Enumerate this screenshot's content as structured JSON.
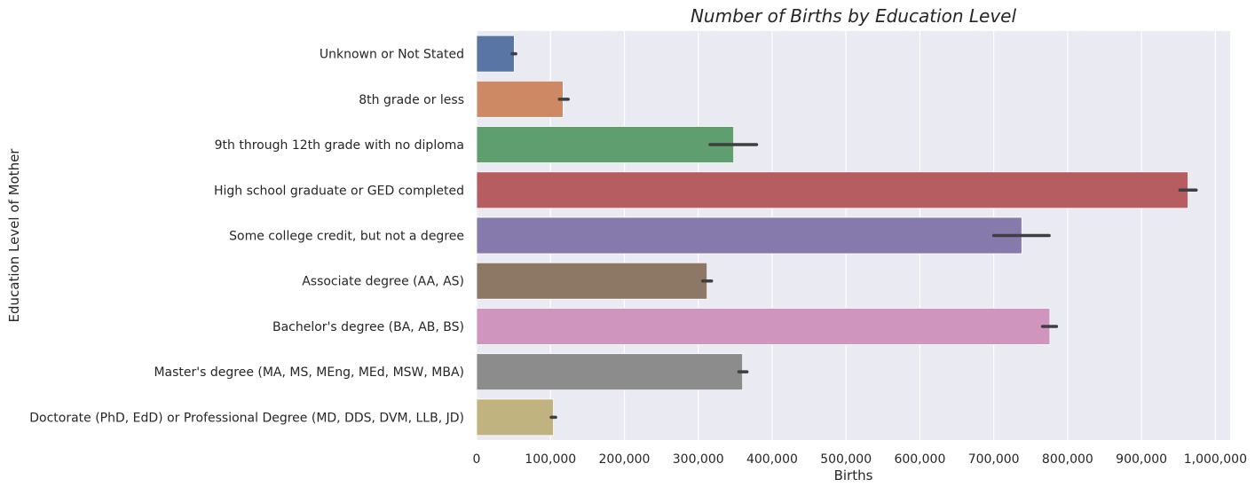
{
  "chart_data": {
    "type": "bar",
    "orientation": "horizontal",
    "title": "Number of Births by Education Level",
    "xlabel": "Births",
    "ylabel": "Education Level of Mother",
    "xlim": [
      0,
      1020000
    ],
    "xticks": [
      0,
      100000,
      200000,
      300000,
      400000,
      500000,
      600000,
      700000,
      800000,
      900000,
      1000000
    ],
    "xtick_labels": [
      "0",
      "100,000",
      "200,000",
      "300,000",
      "400,000",
      "500,000",
      "600,000",
      "700,000",
      "800,000",
      "900,000",
      "1,000,000"
    ],
    "grid": true,
    "categories": [
      "Unknown or Not Stated",
      "8th grade or less",
      "9th through 12th grade with no diploma",
      "High school graduate or GED completed",
      "Some college credit, but not a degree",
      "Associate degree (AA, AS)",
      "Bachelor's degree (BA, AB, BS)",
      "Master's degree (MA, MS, MEng, MEd, MSW, MBA)",
      "Doctorate (PhD, EdD) or Professional Degree (MD, DDS, DVM, LLB, JD)"
    ],
    "values": [
      51000,
      117000,
      348000,
      963000,
      738000,
      312000,
      776000,
      360000,
      104000
    ],
    "error_low": [
      48000,
      112000,
      316000,
      952000,
      700000,
      306000,
      766000,
      355000,
      101000
    ],
    "error_high": [
      53000,
      124000,
      379000,
      974000,
      775000,
      318000,
      785000,
      366000,
      107000
    ],
    "colors": [
      "#5975a4",
      "#cc8963",
      "#5f9e6e",
      "#b55d60",
      "#857aab",
      "#8d7866",
      "#d095bf",
      "#8c8c8c",
      "#c1b37f"
    ],
    "style": {
      "background": "#eaeaf2",
      "grid_color": "#ffffff",
      "errorbar_color": "#3f3f3f"
    }
  }
}
